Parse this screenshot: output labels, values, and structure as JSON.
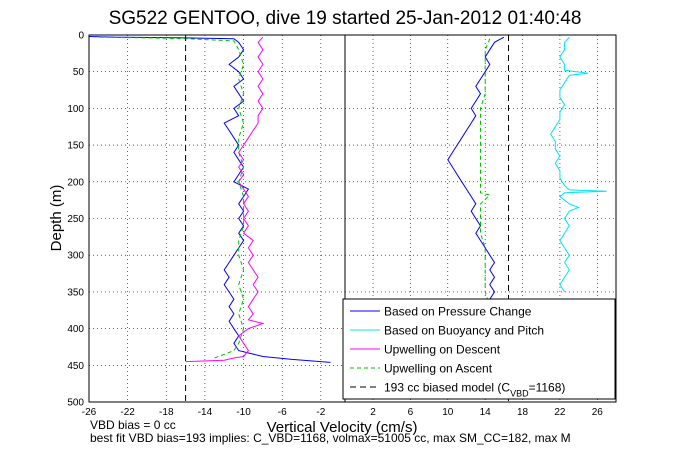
{
  "chart_data": {
    "type": "line",
    "title": "SG522 GENTOO, dive 19 started 25-Jan-2012 01:40:48",
    "xlabel": "Vertical Velocity (cm/s)",
    "ylabel": "Depth (m)",
    "ylim": [
      0,
      500
    ],
    "y_reversed": true,
    "y_ticks": [
      "0",
      "50",
      "100",
      "150",
      "200",
      "250",
      "300",
      "350",
      "400",
      "450",
      "500"
    ],
    "panels": [
      {
        "name": "descent",
        "xlim": [
          -26,
          0.5
        ],
        "x_ticks": [
          "-26",
          "-22",
          "-18",
          "-14",
          "-10",
          "-6",
          "-2"
        ],
        "x_tick_values": [
          -26,
          -22,
          -18,
          -14,
          -10,
          -6,
          -2
        ]
      },
      {
        "name": "ascent",
        "xlim": [
          -1,
          28
        ],
        "x_ticks": [
          "2",
          "6",
          "10",
          "14",
          "18",
          "22",
          "26"
        ],
        "x_tick_values": [
          2,
          6,
          10,
          14,
          18,
          22,
          26
        ]
      }
    ],
    "grid": true,
    "legend_placement": "bottom-right",
    "series": [
      {
        "name": "Based on Pressure Change",
        "color": "#0000ff",
        "style": "solid",
        "descent": [
          [
            -26,
            2
          ],
          [
            -23,
            3
          ],
          [
            -16,
            4
          ],
          [
            -11,
            5
          ],
          [
            -10.5,
            10
          ],
          [
            -10,
            20
          ],
          [
            -10.5,
            30
          ],
          [
            -11.5,
            40
          ],
          [
            -10.5,
            50
          ],
          [
            -10,
            60
          ],
          [
            -11,
            70
          ],
          [
            -10.5,
            80
          ],
          [
            -10,
            90
          ],
          [
            -11,
            100
          ],
          [
            -10.5,
            110
          ],
          [
            -12,
            120
          ],
          [
            -11.5,
            130
          ],
          [
            -11,
            140
          ],
          [
            -10.5,
            150
          ],
          [
            -11,
            160
          ],
          [
            -10.5,
            170
          ],
          [
            -10,
            180
          ],
          [
            -10.5,
            190
          ],
          [
            -11,
            200
          ],
          [
            -9.5,
            210
          ],
          [
            -10,
            220
          ],
          [
            -10.5,
            230
          ],
          [
            -10,
            240
          ],
          [
            -10.5,
            250
          ],
          [
            -10,
            260
          ],
          [
            -10.5,
            270
          ],
          [
            -10,
            280
          ],
          [
            -10.5,
            290
          ],
          [
            -11,
            300
          ],
          [
            -11.5,
            310
          ],
          [
            -12,
            320
          ],
          [
            -11.5,
            330
          ],
          [
            -12,
            340
          ],
          [
            -11.5,
            350
          ],
          [
            -11,
            360
          ],
          [
            -11.5,
            370
          ],
          [
            -11,
            380
          ],
          [
            -11.5,
            390
          ],
          [
            -11,
            400
          ],
          [
            -10.5,
            410
          ],
          [
            -11,
            420
          ],
          [
            -10.5,
            430
          ],
          [
            -8,
            438
          ],
          [
            -5,
            442
          ],
          [
            -2,
            445
          ],
          [
            -1,
            446
          ]
        ],
        "ascent": [
          [
            -0.5,
            446
          ],
          [
            3,
            443
          ],
          [
            6,
            440
          ],
          [
            10,
            436
          ],
          [
            14,
            430
          ],
          [
            14.5,
            420
          ],
          [
            14,
            410
          ],
          [
            14.5,
            400
          ],
          [
            14,
            390
          ],
          [
            14.5,
            380
          ],
          [
            15,
            370
          ],
          [
            14.5,
            360
          ],
          [
            15,
            350
          ],
          [
            14.5,
            340
          ],
          [
            15,
            330
          ],
          [
            14.5,
            320
          ],
          [
            15,
            310
          ],
          [
            14.5,
            300
          ],
          [
            14,
            290
          ],
          [
            13.5,
            280
          ],
          [
            13,
            270
          ],
          [
            13.5,
            260
          ],
          [
            13,
            250
          ],
          [
            12.5,
            240
          ],
          [
            13,
            230
          ],
          [
            12.5,
            220
          ],
          [
            12,
            210
          ],
          [
            11.5,
            200
          ],
          [
            11,
            190
          ],
          [
            10.5,
            180
          ],
          [
            10,
            170
          ],
          [
            10.5,
            160
          ],
          [
            11,
            150
          ],
          [
            11.5,
            140
          ],
          [
            12,
            130
          ],
          [
            12.5,
            120
          ],
          [
            13,
            110
          ],
          [
            12.5,
            100
          ],
          [
            13,
            90
          ],
          [
            13.5,
            80
          ],
          [
            13,
            70
          ],
          [
            13.5,
            60
          ],
          [
            14,
            50
          ],
          [
            14.5,
            40
          ],
          [
            14,
            30
          ],
          [
            14.5,
            20
          ],
          [
            15,
            10
          ],
          [
            16,
            3
          ]
        ]
      },
      {
        "name": "Based on Buoyancy and Pitch",
        "color": "#00e5ee",
        "style": "solid",
        "descent": [],
        "ascent": [
          [
            22.5,
            350
          ],
          [
            22,
            340
          ],
          [
            22.5,
            330
          ],
          [
            23,
            320
          ],
          [
            22.5,
            310
          ],
          [
            23,
            300
          ],
          [
            22.5,
            290
          ],
          [
            22,
            280
          ],
          [
            22.5,
            270
          ],
          [
            23,
            260
          ],
          [
            22.5,
            250
          ],
          [
            23,
            240
          ],
          [
            24,
            235
          ],
          [
            23,
            230
          ],
          [
            22,
            220
          ],
          [
            22.5,
            215
          ],
          [
            27,
            213
          ],
          [
            23,
            211
          ],
          [
            22.5,
            205
          ],
          [
            22,
            195
          ],
          [
            22,
            185
          ],
          [
            21.5,
            175
          ],
          [
            22,
            165
          ],
          [
            21.5,
            155
          ],
          [
            21.5,
            145
          ],
          [
            21,
            135
          ],
          [
            21.5,
            125
          ],
          [
            22,
            115
          ],
          [
            22,
            105
          ],
          [
            22.5,
            95
          ],
          [
            22,
            85
          ],
          [
            22,
            75
          ],
          [
            22.5,
            65
          ],
          [
            23,
            55
          ],
          [
            25,
            52
          ],
          [
            22.5,
            48
          ],
          [
            22.5,
            40
          ],
          [
            22,
            30
          ],
          [
            22.5,
            20
          ],
          [
            22.5,
            10
          ],
          [
            23,
            3
          ]
        ]
      },
      {
        "name": "Upwelling on Descent",
        "color": "#ff00ff",
        "style": "solid",
        "descent": [
          [
            -16,
            445
          ],
          [
            -12,
            443
          ],
          [
            -11,
            440
          ],
          [
            -10,
            438
          ],
          [
            -9.5,
            430
          ],
          [
            -10,
            420
          ],
          [
            -10.5,
            410
          ],
          [
            -9.5,
            400
          ],
          [
            -8,
            393
          ],
          [
            -9.5,
            388
          ],
          [
            -9,
            380
          ],
          [
            -9.5,
            370
          ],
          [
            -9,
            360
          ],
          [
            -8.5,
            350
          ],
          [
            -9,
            340
          ],
          [
            -8.5,
            330
          ],
          [
            -9,
            320
          ],
          [
            -9.5,
            310
          ],
          [
            -9,
            300
          ],
          [
            -9.5,
            290
          ],
          [
            -9,
            280
          ],
          [
            -10,
            270
          ],
          [
            -9.5,
            260
          ],
          [
            -10,
            250
          ],
          [
            -9.5,
            240
          ],
          [
            -10,
            230
          ],
          [
            -9.5,
            220
          ],
          [
            -10,
            210
          ],
          [
            -10.5,
            200
          ],
          [
            -10,
            190
          ],
          [
            -10.5,
            180
          ],
          [
            -10,
            170
          ],
          [
            -10.5,
            160
          ],
          [
            -10,
            150
          ],
          [
            -9.5,
            140
          ],
          [
            -9,
            130
          ],
          [
            -8.5,
            120
          ],
          [
            -8.5,
            110
          ],
          [
            -8,
            100
          ],
          [
            -8.5,
            90
          ],
          [
            -8,
            80
          ],
          [
            -8.5,
            70
          ],
          [
            -8,
            60
          ],
          [
            -8.5,
            50
          ],
          [
            -8,
            40
          ],
          [
            -8.5,
            30
          ],
          [
            -8,
            20
          ],
          [
            -8.5,
            10
          ],
          [
            -8,
            3
          ]
        ],
        "ascent": []
      },
      {
        "name": "Upwelling on Ascent",
        "color": "#00c000",
        "style": "dashed",
        "descent": [
          [
            -13,
            440
          ],
          [
            -11,
            430
          ],
          [
            -10.5,
            420
          ],
          [
            -10,
            400
          ],
          [
            -10.5,
            380
          ],
          [
            -10,
            360
          ],
          [
            -10.5,
            340
          ],
          [
            -10,
            320
          ],
          [
            -10.5,
            300
          ],
          [
            -10.5,
            280
          ],
          [
            -10,
            260
          ],
          [
            -10,
            240
          ],
          [
            -10,
            220
          ],
          [
            -10.5,
            200
          ],
          [
            -10,
            180
          ],
          [
            -10.5,
            160
          ],
          [
            -10.5,
            140
          ],
          [
            -10,
            120
          ],
          [
            -10.5,
            100
          ],
          [
            -10,
            80
          ],
          [
            -10.5,
            60
          ],
          [
            -10,
            40
          ],
          [
            -10.5,
            20
          ],
          [
            -11,
            8
          ],
          [
            -16,
            5
          ],
          [
            -20,
            4
          ],
          [
            -25,
            3
          ]
        ],
        "ascent": [
          [
            13.5,
            446
          ],
          [
            14,
            430
          ],
          [
            14,
            410
          ],
          [
            14,
            390
          ],
          [
            14.5,
            370
          ],
          [
            14,
            350
          ],
          [
            14,
            330
          ],
          [
            14,
            310
          ],
          [
            14,
            290
          ],
          [
            13.5,
            270
          ],
          [
            13.5,
            250
          ],
          [
            13.5,
            230
          ],
          [
            14.5,
            218
          ],
          [
            13.5,
            215
          ],
          [
            13.5,
            200
          ],
          [
            13.5,
            180
          ],
          [
            13.5,
            160
          ],
          [
            13.5,
            140
          ],
          [
            13.5,
            120
          ],
          [
            13.5,
            100
          ],
          [
            14,
            80
          ],
          [
            14,
            60
          ],
          [
            14,
            40
          ],
          [
            14,
            20
          ],
          [
            14.5,
            5
          ]
        ]
      },
      {
        "name": "193 cc biased model (C_VBD=1168)",
        "legend_label_main": "193 cc biased model (C",
        "legend_label_sub": "VBD",
        "legend_label_end": "=1168)",
        "color": "#000000",
        "style": "dashed",
        "descent": [
          [
            -16,
            0
          ],
          [
            -16,
            500
          ]
        ],
        "ascent": [
          [
            16.5,
            0
          ],
          [
            16.5,
            500
          ]
        ]
      }
    ]
  },
  "footer": {
    "line1": "VBD bias = 0 cc",
    "line2": "best fit VBD bias=193 implies: C_VBD=1168, volmax=51005 cc, max SM_CC=182, max M"
  }
}
